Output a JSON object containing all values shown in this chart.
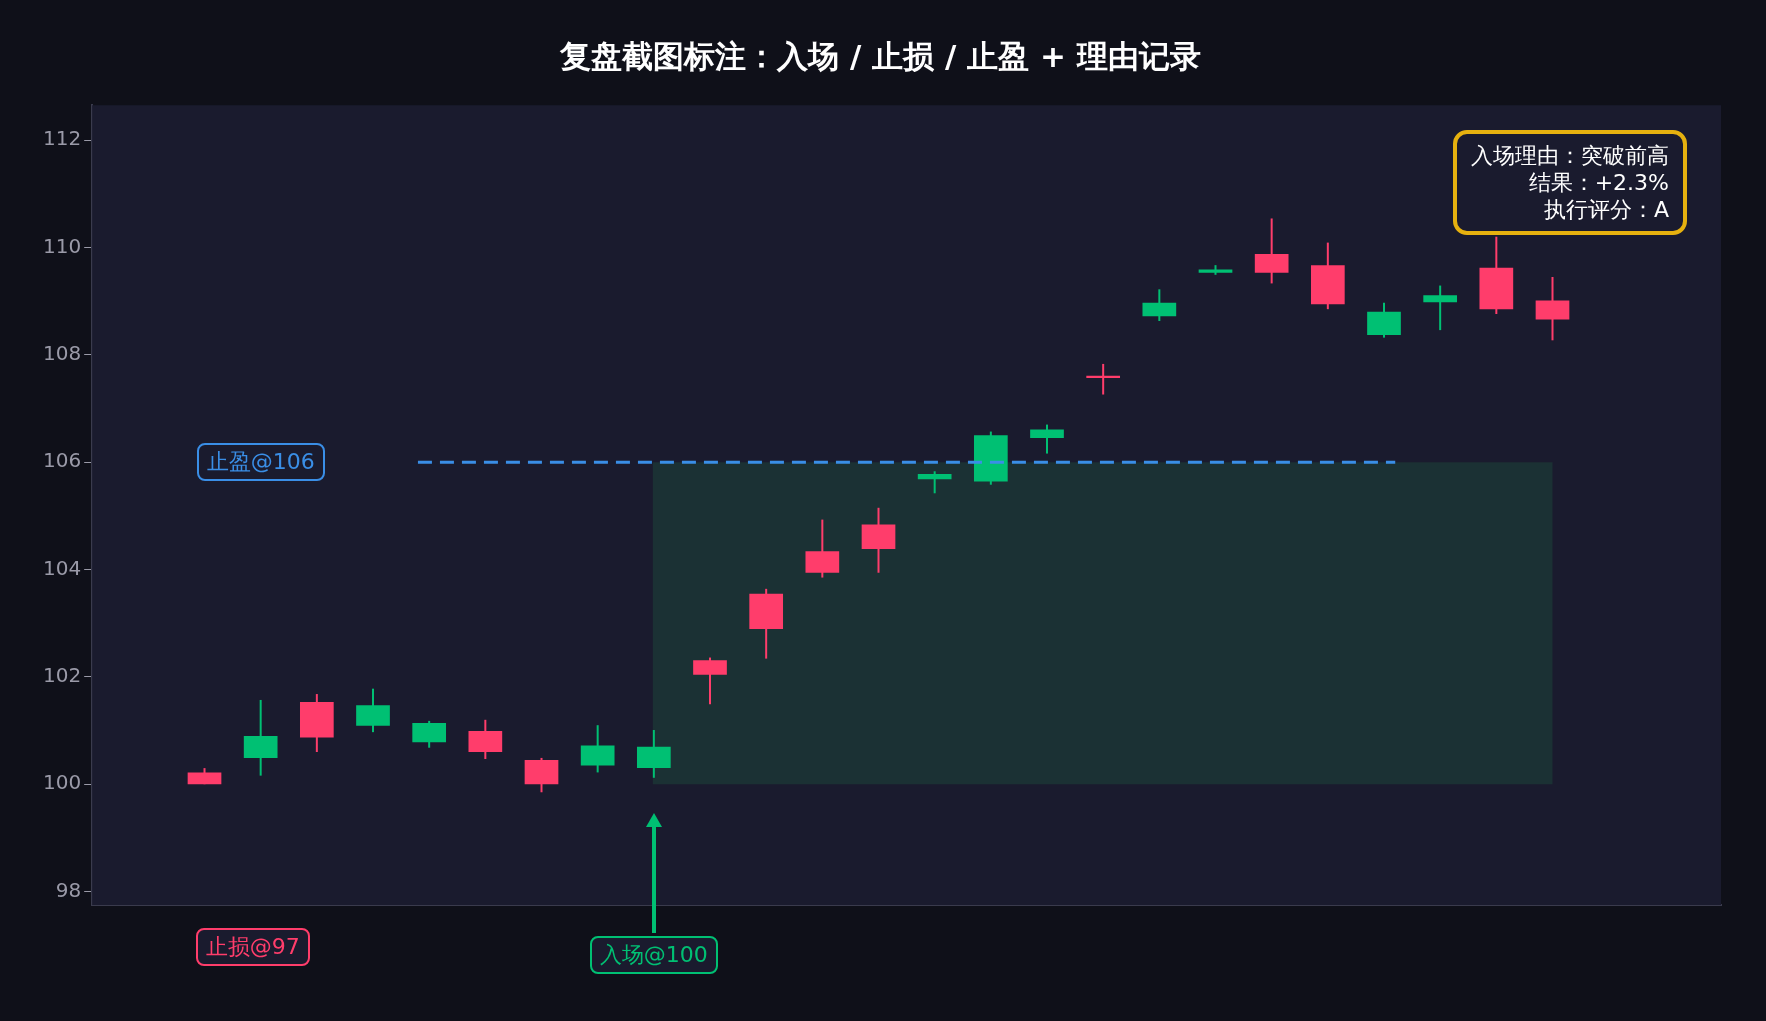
{
  "chart_data": {
    "type": "candlestick",
    "title": "复盘截图标注：入场 / 止损 / 止盈 + 理由记录",
    "categories": [
      null,
      null,
      null,
      null,
      null,
      null,
      null,
      null,
      null,
      null,
      null,
      null,
      null,
      null,
      null,
      null,
      null,
      null,
      null,
      null,
      null,
      null,
      null,
      null,
      null
    ],
    "ohlc": [
      [
        100.0,
        100.3,
        100.0,
        100.22
      ],
      [
        100.9,
        101.57,
        100.16,
        100.49
      ],
      [
        100.87,
        101.68,
        100.6,
        101.53
      ],
      [
        101.47,
        101.78,
        100.97,
        101.09
      ],
      [
        101.14,
        101.18,
        100.68,
        100.78
      ],
      [
        100.6,
        101.2,
        100.47,
        100.99
      ],
      [
        100.0,
        100.49,
        99.85,
        100.45
      ],
      [
        100.72,
        101.1,
        100.22,
        100.35
      ],
      [
        100.7,
        101.01,
        100.12,
        100.3
      ],
      [
        102.04,
        102.36,
        101.49,
        102.31
      ],
      [
        102.89,
        103.64,
        102.34,
        103.55
      ],
      [
        103.94,
        104.93,
        103.85,
        104.34
      ],
      [
        104.38,
        105.15,
        103.94,
        104.84
      ],
      [
        105.78,
        105.83,
        105.42,
        105.68
      ],
      [
        106.5,
        106.57,
        105.58,
        105.64
      ],
      [
        106.61,
        106.7,
        106.16,
        106.45
      ],
      [
        107.57,
        107.83,
        107.26,
        107.61
      ],
      [
        108.97,
        109.22,
        108.63,
        108.72
      ],
      [
        109.59,
        109.67,
        109.49,
        109.53
      ],
      [
        109.53,
        110.54,
        109.33,
        109.88
      ],
      [
        108.94,
        110.09,
        108.85,
        109.67
      ],
      [
        108.8,
        108.97,
        108.32,
        108.37
      ],
      [
        109.11,
        109.29,
        108.46,
        108.98
      ],
      [
        108.85,
        110.2,
        108.76,
        109.62
      ],
      [
        108.66,
        109.45,
        108.27,
        109.01
      ]
    ],
    "colors": [
      "#ff3d6b",
      "#00c073",
      "#ff3d6b",
      "#00c073",
      "#00c073",
      "#ff3d6b",
      "#ff3d6b",
      "#00c073",
      "#00c073",
      "#ff3d6b",
      "#ff3d6b",
      "#ff3d6b",
      "#ff3d6b",
      "#00c073",
      "#00c073",
      "#00c073",
      "#ff3d6b",
      "#00c073",
      "#00c073",
      "#ff3d6b",
      "#ff3d6b",
      "#00c073",
      "#00c073",
      "#ff3d6b",
      "#ff3d6b"
    ],
    "ylim": [
      97.75,
      112.65
    ],
    "yticks": [
      98,
      100,
      102,
      104,
      106,
      108,
      110,
      112
    ],
    "tick_labels": "y",
    "grid": false,
    "ref_lines": [
      {
        "axis": "y",
        "value": 106,
        "label": "止盈@106",
        "color": "#3a8ee6",
        "line_style": "dashed"
      }
    ],
    "bands": [
      {
        "axis": "y",
        "from": 100,
        "to": 106,
        "color": "#1c3535"
      }
    ],
    "annotations": [
      "止损@97",
      "入场@100",
      "入场理由：突破前高",
      "结果：+2.3%",
      "执行评分：A"
    ]
  }
}
